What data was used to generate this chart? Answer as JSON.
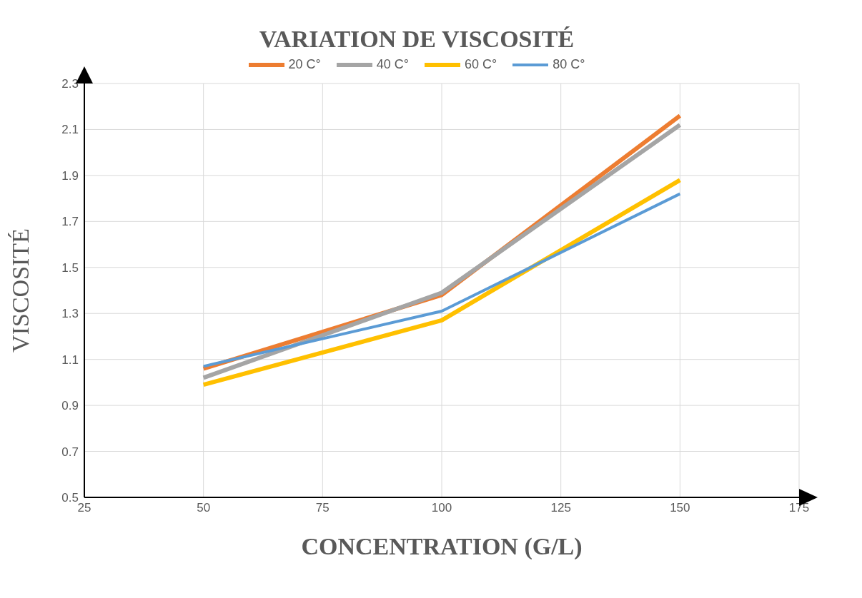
{
  "chart_data": {
    "type": "line",
    "title": "VARIATION DE VISCOSITÉ",
    "xlabel": "CONCENTRATION (G/L)",
    "ylabel": "VISCOSITÉ",
    "x": [
      50,
      100,
      150
    ],
    "series": [
      {
        "name": "20 C°",
        "color": "#ed7d31",
        "values": [
          1.06,
          1.38,
          2.16
        ]
      },
      {
        "name": "40 C°",
        "color": "#a5a5a5",
        "values": [
          1.02,
          1.39,
          2.12
        ]
      },
      {
        "name": "60 C°",
        "color": "#ffc000",
        "values": [
          0.99,
          1.27,
          1.88
        ]
      },
      {
        "name": "80 C°",
        "color": "#5b9bd5",
        "values": [
          1.07,
          1.31,
          1.82
        ]
      }
    ],
    "xlim": [
      25,
      175
    ],
    "xticks": [
      25,
      50,
      75,
      100,
      125,
      150,
      175
    ],
    "ylim": [
      0.5,
      2.3
    ],
    "yticks": [
      0.5,
      0.7,
      0.9,
      1.1,
      1.3,
      1.5,
      1.7,
      1.9,
      2.1,
      2.3
    ],
    "grid": true,
    "legend": "top",
    "marker": "none",
    "line_style": "solid"
  }
}
